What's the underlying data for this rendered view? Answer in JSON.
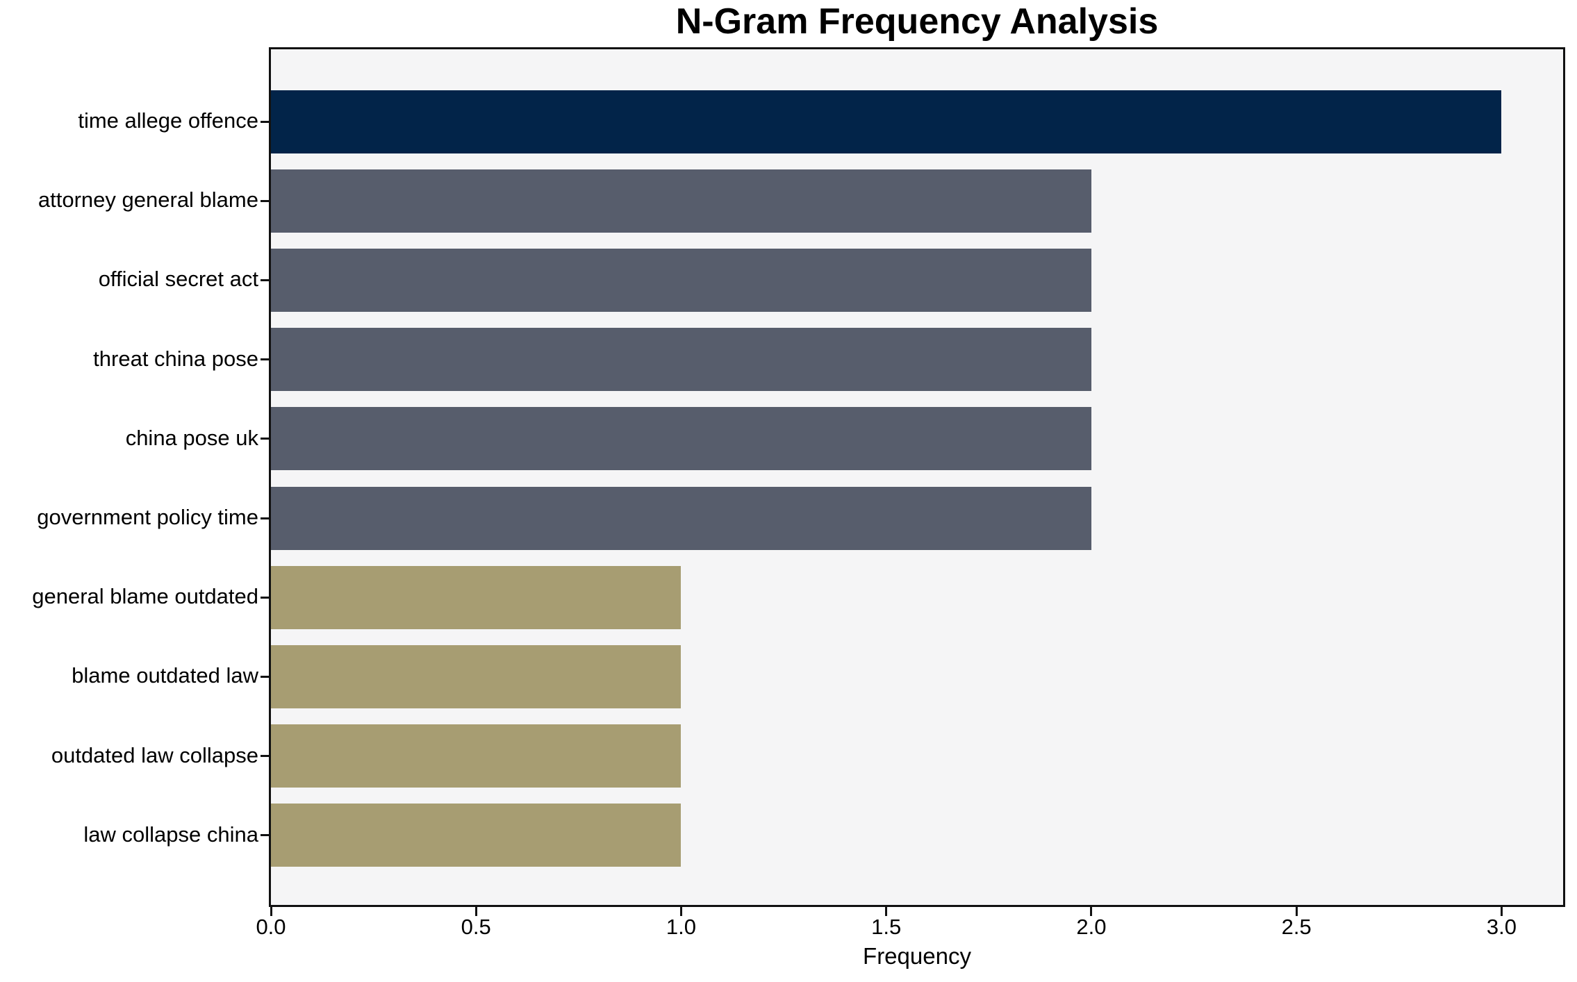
{
  "chart_data": {
    "type": "bar",
    "orientation": "horizontal",
    "title": "N-Gram Frequency Analysis",
    "xlabel": "Frequency",
    "ylabel": "",
    "categories": [
      "time allege offence",
      "attorney general blame",
      "official secret act",
      "threat china pose",
      "china pose uk",
      "government policy time",
      "general blame outdated",
      "blame outdated law",
      "outdated law collapse",
      "law collapse china"
    ],
    "values": [
      3,
      2,
      2,
      2,
      2,
      2,
      1,
      1,
      1,
      1
    ],
    "bar_colors": [
      "#022449",
      "#575d6c",
      "#575d6c",
      "#575d6c",
      "#575d6c",
      "#575d6c",
      "#a79d72",
      "#a79d72",
      "#a79d72",
      "#a79d72"
    ],
    "xticks": {
      "values": [
        0,
        0.5,
        1.0,
        1.5,
        2.0,
        2.5,
        3.0
      ],
      "labels": [
        "0.0",
        "0.5",
        "1.0",
        "1.5",
        "2.0",
        "2.5",
        "3.0"
      ]
    },
    "xlim": [
      0,
      3.15
    ],
    "grid": false,
    "legend": "none",
    "colors": {
      "bar_value_3": "#022449",
      "bar_value_2": "#575d6c",
      "bar_value_1": "#a79d72",
      "plot_background": "#f5f5f6",
      "figure_background": "#ffffff",
      "spine": "#111111",
      "text": "#000000"
    }
  }
}
